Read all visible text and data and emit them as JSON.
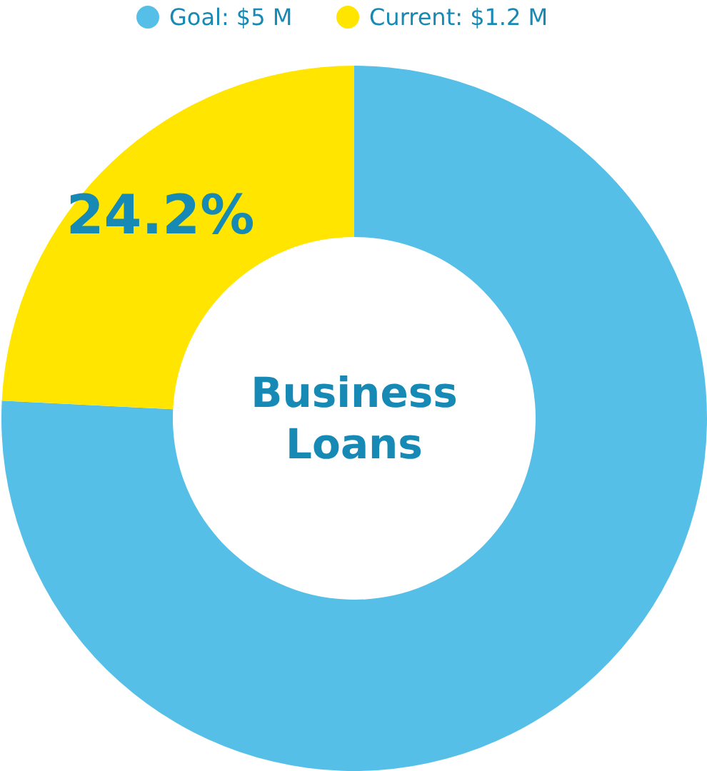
{
  "chart_data": {
    "type": "donut",
    "title": "Business Loans",
    "categories": [
      "Goal: $5 M",
      "Current: $1.2 M"
    ],
    "values": [
      75.8,
      24.2
    ],
    "colors": [
      "#56bfe8",
      "#ffe500"
    ],
    "value_labels": [
      null,
      "24.2%"
    ],
    "legend": "top"
  }
}
